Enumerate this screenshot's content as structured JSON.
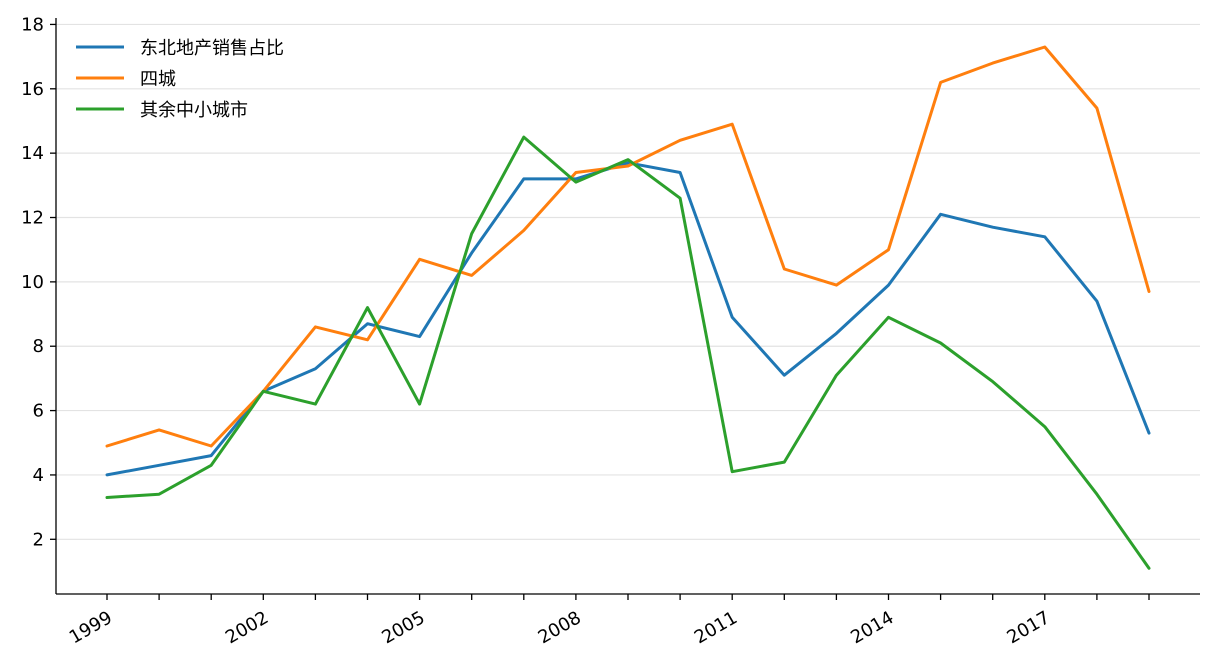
{
  "chart_data": {
    "type": "line",
    "title": "",
    "xlabel": "",
    "ylabel": "",
    "x": [
      1999,
      2000,
      2001,
      2002,
      2003,
      2004,
      2005,
      2006,
      2007,
      2008,
      2009,
      2010,
      2011,
      2012,
      2013,
      2014,
      2015,
      2016,
      2017,
      2018,
      2019
    ],
    "x_tick_labels": [
      "1999",
      "2002",
      "2005",
      "2008",
      "2011",
      "2014",
      "2017"
    ],
    "y_ticks": [
      "2",
      "4",
      "6",
      "8",
      "10",
      "12",
      "14",
      "16",
      "18"
    ],
    "ylim": [
      0.3,
      18.2
    ],
    "grid": "y",
    "legend_position": "top-left",
    "series": [
      {
        "name": "东北地产销售占比",
        "color": "#1f77b4",
        "values": [
          4.0,
          4.3,
          4.6,
          6.6,
          7.3,
          8.7,
          8.3,
          10.9,
          13.2,
          13.2,
          13.7,
          13.4,
          8.9,
          7.1,
          8.4,
          9.9,
          12.1,
          11.7,
          11.4,
          9.4,
          5.3
        ]
      },
      {
        "name": "四城",
        "color": "#ff7f0e",
        "values": [
          4.9,
          5.4,
          4.9,
          6.6,
          8.6,
          8.2,
          10.7,
          10.2,
          11.6,
          13.4,
          13.6,
          14.4,
          14.9,
          10.4,
          9.9,
          11.0,
          16.2,
          16.8,
          17.3,
          15.4,
          9.7
        ]
      },
      {
        "name": "其余中小城市",
        "color": "#2ca02c",
        "values": [
          3.3,
          3.4,
          4.3,
          6.6,
          6.2,
          9.2,
          6.2,
          11.5,
          14.5,
          13.1,
          13.8,
          12.6,
          4.1,
          4.4,
          7.1,
          8.9,
          8.1,
          6.9,
          5.5,
          3.4,
          1.1
        ]
      }
    ]
  }
}
